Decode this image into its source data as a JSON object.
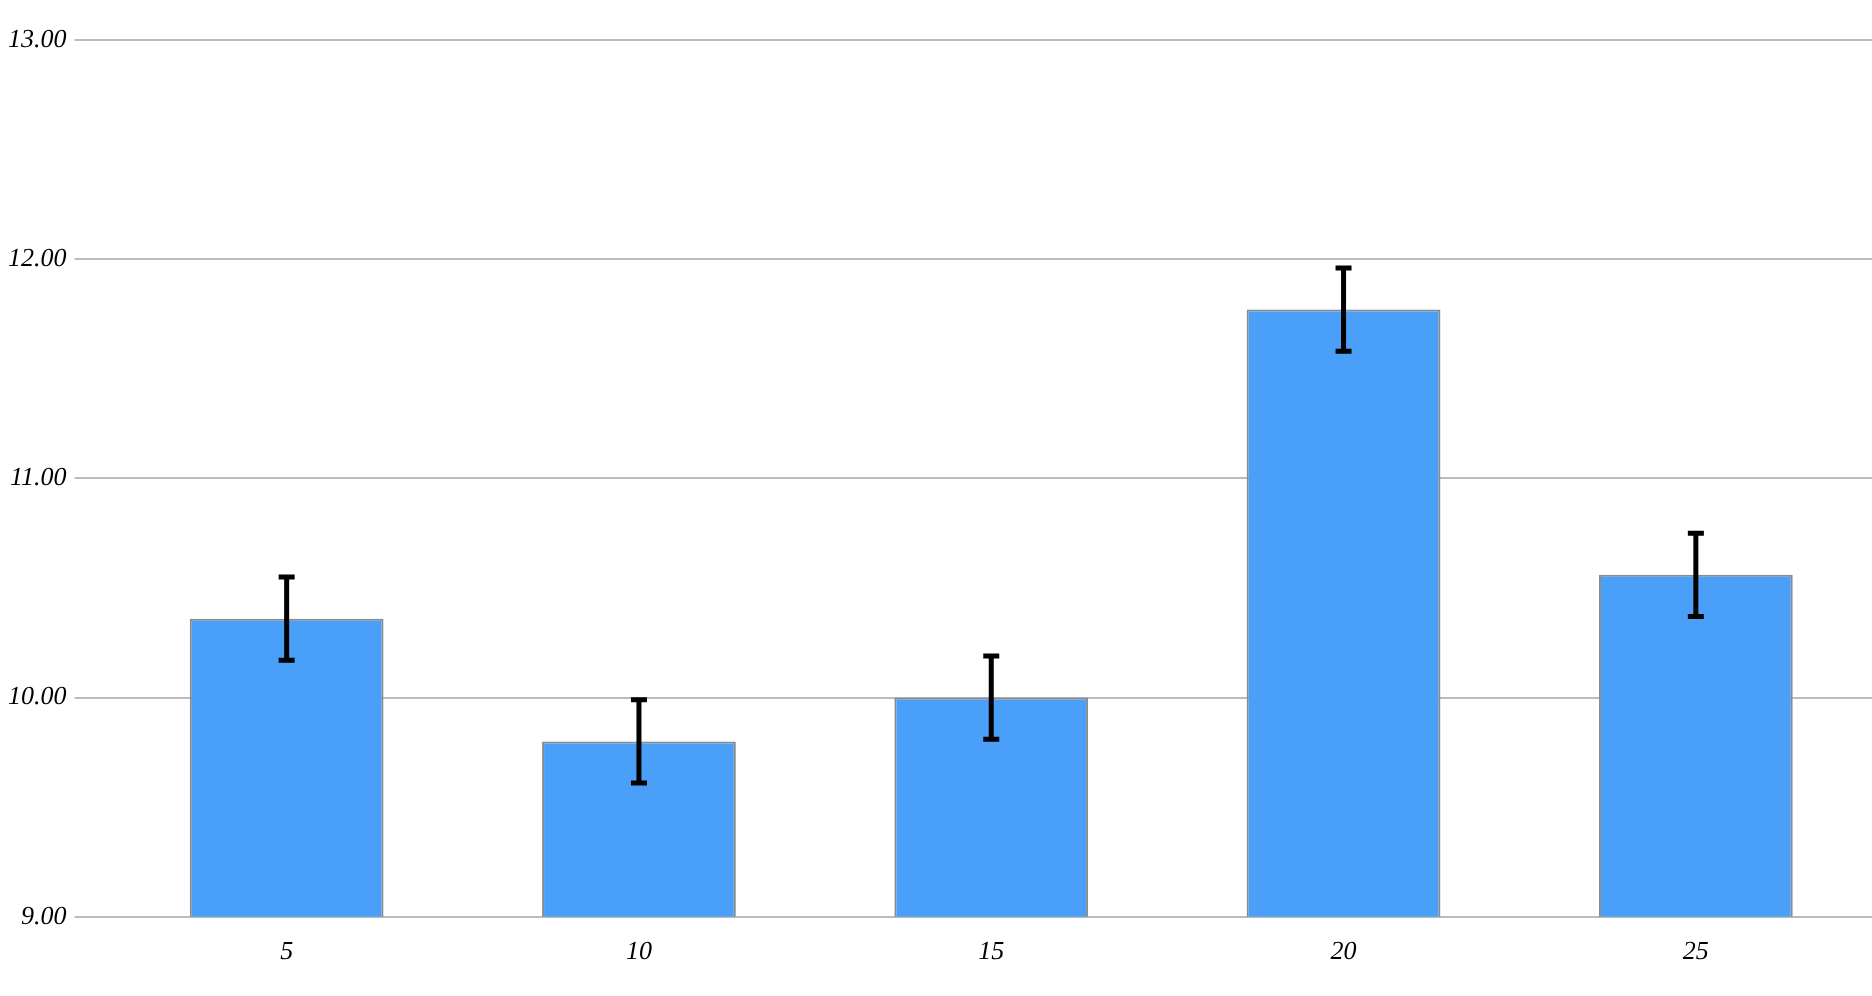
{
  "chart_data": {
    "type": "bar",
    "categories": [
      "5",
      "10",
      "15",
      "20",
      "25"
    ],
    "values": [
      10.36,
      9.8,
      10.0,
      11.77,
      10.56
    ],
    "errors": [
      0.19,
      0.19,
      0.19,
      0.19,
      0.19
    ],
    "color": "#4aa0f8",
    "ylim": [
      9,
      13
    ],
    "yticks": [
      {
        "value": 9,
        "label": "9.00"
      },
      {
        "value": 10,
        "label": "10.00"
      },
      {
        "value": 11,
        "label": "11.00"
      },
      {
        "value": 12,
        "label": "12.00"
      },
      {
        "value": 13,
        "label": "13.00"
      }
    ],
    "grid": "y"
  }
}
